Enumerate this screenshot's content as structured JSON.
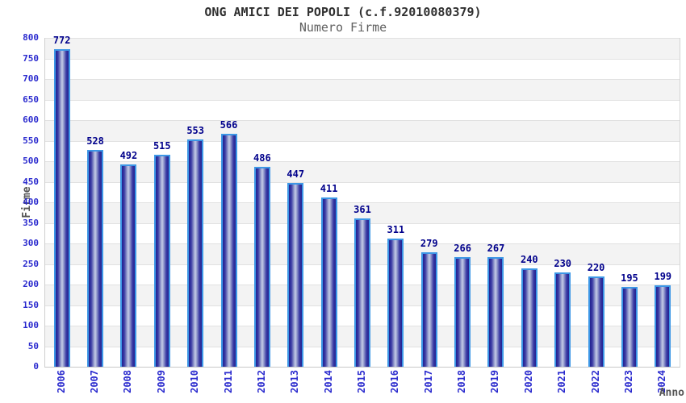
{
  "header": {
    "title": "ONG AMICI DEI POPOLI (c.f.92010080379)",
    "subtitle": "Numero Firme"
  },
  "chart_data": {
    "type": "bar",
    "title": "ONG AMICI DEI POPOLI (c.f.92010080379)",
    "subtitle": "Numero Firme",
    "xlabel": "Anno",
    "ylabel": "Firme",
    "categories": [
      "2006",
      "2007",
      "2008",
      "2009",
      "2010",
      "2011",
      "2012",
      "2013",
      "2014",
      "2015",
      "2016",
      "2017",
      "2018",
      "2019",
      "2020",
      "2021",
      "2022",
      "2023",
      "2024"
    ],
    "values": [
      772,
      528,
      492,
      515,
      553,
      566,
      486,
      447,
      411,
      361,
      311,
      279,
      266,
      267,
      240,
      230,
      220,
      195,
      199
    ],
    "ylim": [
      0,
      800
    ],
    "ytick_step": 50,
    "grid": true,
    "legend": "none",
    "colors": {
      "bar_border": "#3d97e6",
      "bar_edge": "#222290",
      "bar_mid": "#9aa2d0",
      "bar_center": "#c6cce8",
      "value_label": "#00008b",
      "tick_label": "#2a2ace",
      "band_gray": "#f3f3f3",
      "band_white": "#ffffff",
      "gridline": "#e1e1e1",
      "axis_title": "#555555",
      "title": "#303030",
      "subtitle": "#606060"
    }
  }
}
